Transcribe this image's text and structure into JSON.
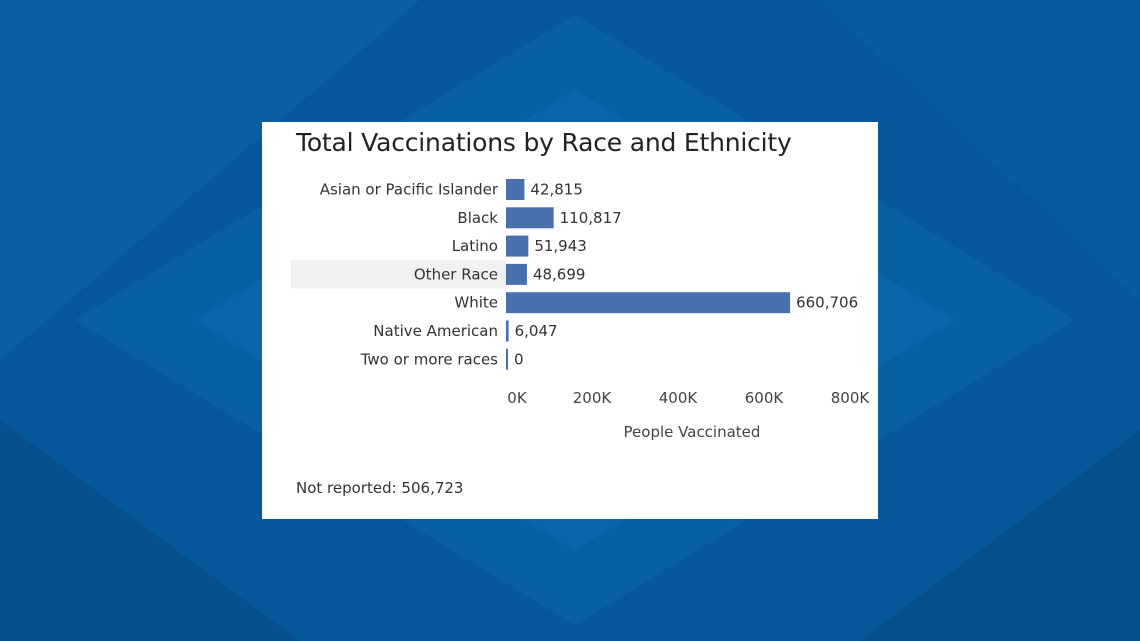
{
  "chart_data": {
    "type": "bar",
    "orientation": "horizontal",
    "title": "Total Vaccinations by Race and Ethnicity",
    "xlabel": "People Vaccinated",
    "ylabel": "",
    "xlim": [
      0,
      800000
    ],
    "ticks": [
      "0K",
      "200K",
      "400K",
      "600K",
      "800K"
    ],
    "categories": [
      "Asian or Pacific Islander",
      "Black",
      "Latino",
      "Other Race",
      "White",
      "Native American",
      "Two or more races"
    ],
    "values": [
      42815,
      110817,
      51943,
      48699,
      660706,
      6047,
      0
    ],
    "value_labels": [
      "42,815",
      "110,817",
      "51,943",
      "48,699",
      "660,706",
      "6,047",
      "0"
    ],
    "highlighted_category": "Other Race",
    "bar_color": "#4a6faf",
    "grid": false,
    "footnote": "Not reported: 506,723"
  }
}
